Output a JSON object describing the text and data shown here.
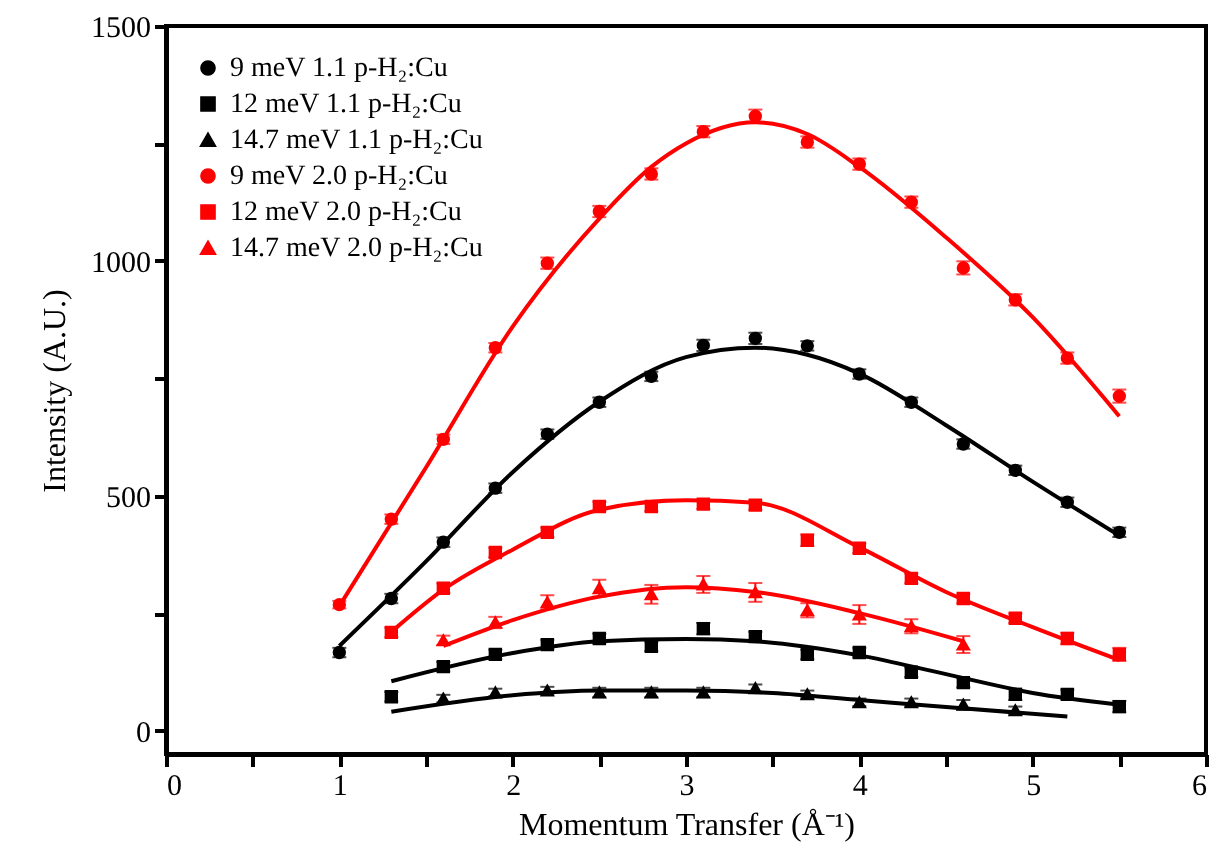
{
  "chart_data": {
    "type": "scatter",
    "xlabel": "Momentum Transfer (Å⁻¹)",
    "ylabel": "Intensity (A.U.)",
    "xlim": [
      0,
      6
    ],
    "ylim": [
      -50,
      1500
    ],
    "xticks": [
      0,
      {
        "value": 0.5,
        "label": null
      },
      1,
      {
        "value": 1.5,
        "label": null
      },
      2,
      {
        "value": 2.5,
        "label": null
      },
      3,
      {
        "value": 3.5,
        "label": null
      },
      4,
      {
        "value": 4.5,
        "label": null
      },
      5,
      {
        "value": 5.5,
        "label": null
      },
      6
    ],
    "yticks": [
      0,
      {
        "value": 250,
        "label": null
      },
      500,
      {
        "value": 750,
        "label": null
      },
      1000,
      {
        "value": 1250,
        "label": null
      },
      1500
    ],
    "grid": false,
    "legend": "top left",
    "series": [
      {
        "name": "9 meV 1.1 p-H₂:Cu",
        "color": "#000000",
        "marker": "circle",
        "x": [
          1.0,
          1.3,
          1.6,
          1.9,
          2.2,
          2.5,
          2.8,
          3.1,
          3.4,
          3.7,
          4.0,
          4.3,
          4.6,
          4.9,
          5.2,
          5.5
        ],
        "values": [
          166,
          281,
          401,
          516,
          631,
          699,
          754,
          820,
          835,
          819,
          759,
          699,
          610,
          554,
          486,
          422
        ],
        "errors": [
          10,
          10,
          10,
          10,
          10,
          10,
          10,
          12,
          12,
          10,
          10,
          10,
          10,
          10,
          10,
          10
        ]
      },
      {
        "name": "12 meV 1.1 p-H₂:Cu",
        "color": "#000000",
        "marker": "square",
        "x": [
          1.3,
          1.6,
          1.9,
          2.2,
          2.5,
          2.8,
          3.1,
          3.4,
          3.7,
          4.0,
          4.3,
          4.6,
          4.9,
          5.2,
          5.5
        ],
        "values": [
          72,
          136,
          162,
          183,
          196,
          179,
          217,
          200,
          162,
          166,
          124,
          102,
          77,
          77,
          51
        ],
        "errors": [
          10,
          10,
          10,
          10,
          10,
          10,
          12,
          10,
          10,
          10,
          10,
          10,
          12,
          10,
          12
        ]
      },
      {
        "name": "14.7 meV 1.1 p-H₂:Cu",
        "color": "#000000",
        "marker": "triangle",
        "x": [
          1.6,
          1.9,
          2.2,
          2.5,
          2.8,
          3.1,
          3.4,
          3.7,
          4.0,
          4.3,
          4.6,
          4.9
        ],
        "values": [
          68,
          81,
          85,
          81,
          81,
          81,
          90,
          77,
          60,
          60,
          55,
          43
        ],
        "errors": [
          8,
          8,
          8,
          10,
          10,
          10,
          8,
          8,
          8,
          8,
          10,
          8
        ]
      },
      {
        "name": "9 meV 2.0 p-H₂:Cu",
        "color": "#ff0000",
        "marker": "circle",
        "x": [
          1.0,
          1.3,
          1.6,
          1.9,
          2.2,
          2.5,
          2.8,
          3.1,
          3.4,
          3.7,
          4.0,
          4.3,
          4.6,
          4.9,
          5.2,
          5.5
        ],
        "values": [
          268,
          450,
          620,
          815,
          995,
          1105,
          1185,
          1275,
          1308,
          1253,
          1206,
          1125,
          985,
          917,
          793,
          712
        ],
        "errors": [
          8,
          10,
          10,
          10,
          12,
          12,
          12,
          12,
          14,
          12,
          12,
          12,
          14,
          12,
          12,
          14
        ]
      },
      {
        "name": "12 meV 2.0 p-H₂:Cu",
        "color": "#ff0000",
        "marker": "square",
        "x": [
          1.3,
          1.6,
          1.9,
          2.2,
          2.5,
          2.8,
          3.1,
          3.4,
          3.7,
          4.0,
          4.3,
          4.6,
          4.9,
          5.2,
          5.5
        ],
        "values": [
          209,
          303,
          379,
          422,
          477,
          477,
          482,
          480,
          405,
          388,
          324,
          281,
          239,
          196,
          162
        ],
        "errors": [
          10,
          10,
          10,
          10,
          10,
          10,
          10,
          10,
          12,
          10,
          10,
          10,
          10,
          12,
          14
        ]
      },
      {
        "name": "14.7 meV 2.0 p-H₂:Cu",
        "color": "#ff0000",
        "marker": "triangle",
        "x": [
          1.6,
          1.9,
          2.2,
          2.5,
          2.8,
          3.1,
          3.4,
          3.7,
          4.0,
          4.3,
          4.6
        ],
        "values": [
          192,
          230,
          273,
          303,
          290,
          311,
          294,
          256,
          247,
          222,
          183
        ],
        "errors": [
          10,
          12,
          15,
          18,
          20,
          18,
          20,
          15,
          20,
          15,
          18
        ]
      },
      {
        "type": "line",
        "color": "#000000",
        "x": [
          1.0,
          1.5,
          2.0,
          2.5,
          3.0,
          3.4,
          3.7,
          4.0,
          4.5,
          5.0,
          5.5
        ],
        "values": [
          180,
          360,
          550,
          700,
          795,
          815,
          800,
          760,
          650,
          530,
          415
        ]
      },
      {
        "type": "line",
        "color": "#000000",
        "x": [
          1.3,
          2.0,
          2.5,
          3.0,
          3.4,
          4.0,
          4.5,
          5.0,
          5.5
        ],
        "values": [
          105,
          165,
          190,
          195,
          190,
          160,
          120,
          80,
          55
        ]
      },
      {
        "type": "line",
        "color": "#000000",
        "x": [
          1.3,
          2.0,
          2.5,
          3.0,
          3.5,
          4.0,
          4.5,
          5.2
        ],
        "values": [
          40,
          75,
          85,
          85,
          80,
          65,
          50,
          30
        ]
      },
      {
        "type": "line",
        "color": "#ff0000",
        "x": [
          1.0,
          1.5,
          2.0,
          2.5,
          2.8,
          3.0,
          3.4,
          3.7,
          4.0,
          4.5,
          5.0,
          5.5
        ],
        "values": [
          265,
          560,
          860,
          1090,
          1200,
          1250,
          1295,
          1270,
          1200,
          1050,
          880,
          669
        ]
      },
      {
        "type": "line",
        "color": "#ff0000",
        "x": [
          1.3,
          1.6,
          2.0,
          2.5,
          3.0,
          3.4,
          4.0,
          4.5,
          5.0,
          5.5
        ],
        "values": [
          210,
          300,
          385,
          470,
          490,
          485,
          390,
          295,
          220,
          150
        ]
      },
      {
        "type": "line",
        "color": "#ff0000",
        "x": [
          1.6,
          2.0,
          2.5,
          3.0,
          3.4,
          4.0,
          4.6
        ],
        "values": [
          180,
          235,
          285,
          305,
          295,
          250,
          190
        ]
      }
    ]
  }
}
